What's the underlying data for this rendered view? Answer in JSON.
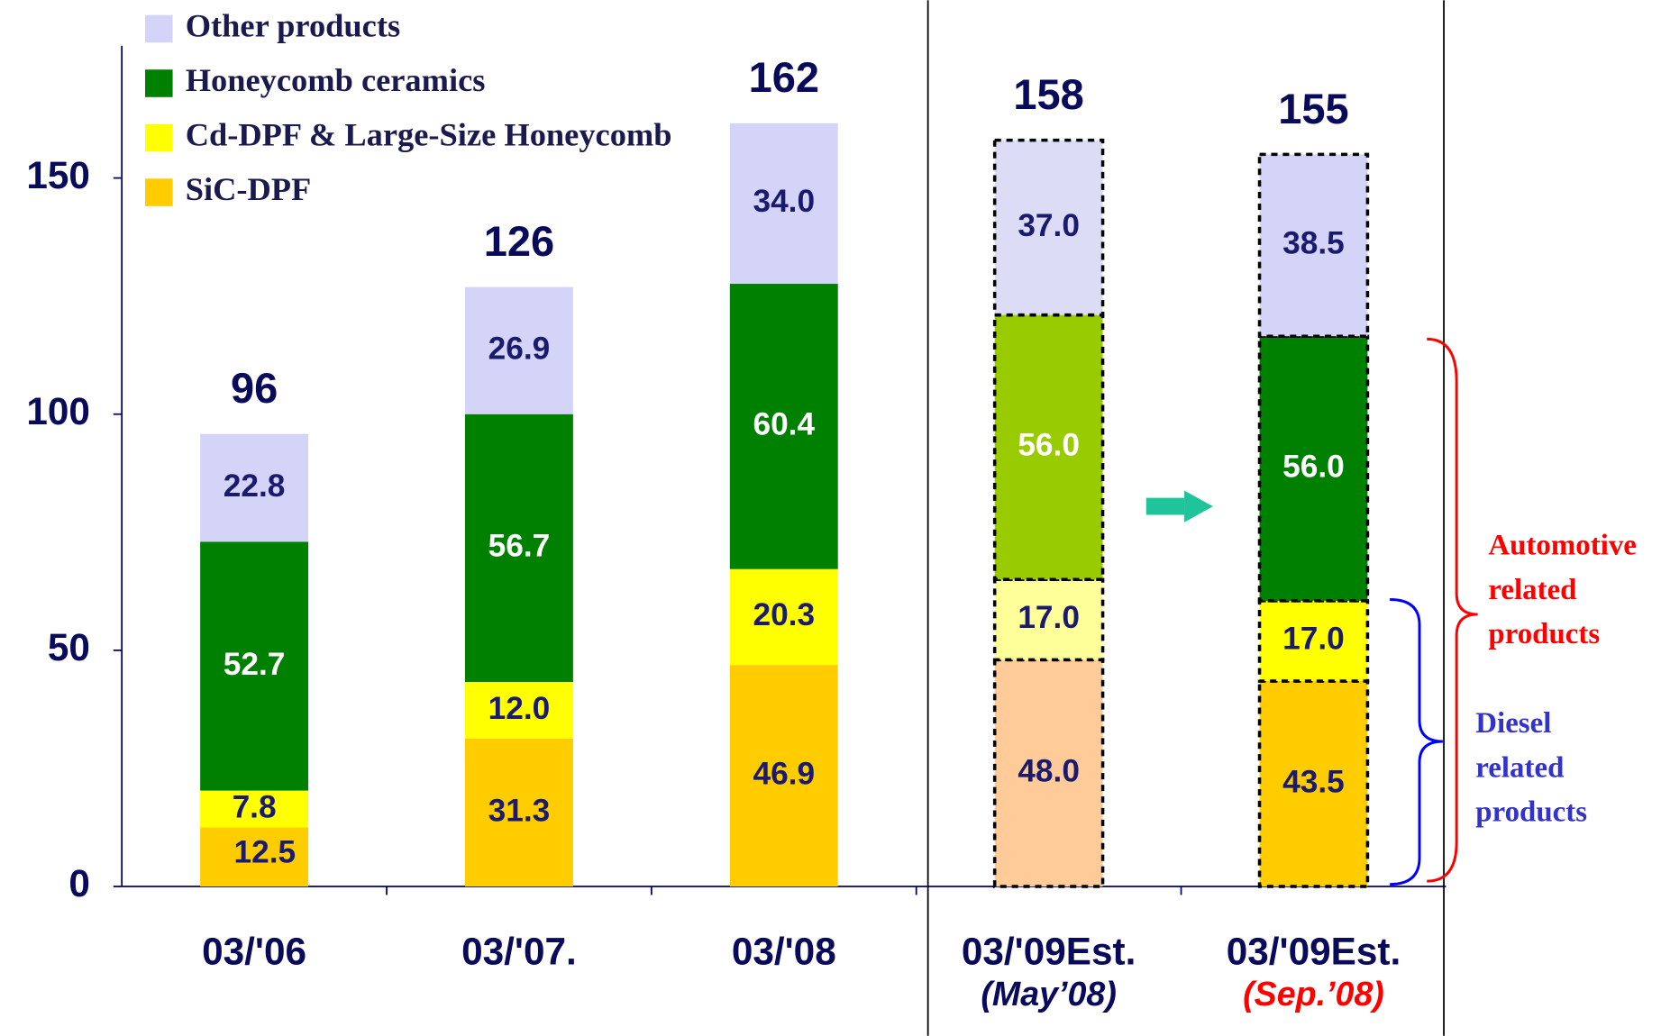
{
  "chart_data": {
    "type": "stacked_bar",
    "categories": [
      "03/'06",
      "03/'07.",
      "03/'08",
      "03/'09Est.",
      "03/'09Est."
    ],
    "category_sublabels": [
      null,
      null,
      null,
      "(May’08)",
      "(Sep.’08)"
    ],
    "category_sublabel_colors": [
      null,
      null,
      null,
      "#0a0a5a",
      "#ff0000"
    ],
    "estimate": [
      false,
      false,
      false,
      true,
      true
    ],
    "ylim": [
      0,
      178
    ],
    "yticks": [
      0,
      50,
      100,
      150
    ],
    "totals": [
      96,
      126,
      162,
      158,
      155
    ],
    "series": [
      {
        "name": "SiC-DPF",
        "color": "#ffcc00",
        "colors": [
          "#ffcc00",
          "#ffcc00",
          "#ffcc00",
          "#ffcc99",
          "#ffcc00"
        ],
        "label_color": "#1a1a6e",
        "values": [
          12.5,
          31.3,
          46.9,
          48.0,
          43.5
        ],
        "value_labels": [
          "12.5",
          "31.3",
          "46.9",
          "48.0",
          "43.5"
        ]
      },
      {
        "name": "Cd-DPF & Large-Size Honeycomb",
        "color": "#ffff00",
        "colors": [
          "#ffff00",
          "#ffff00",
          "#ffff00",
          "#ffff99",
          "#ffff00"
        ],
        "label_color": "#1a1a6e",
        "values": [
          7.8,
          12.0,
          20.3,
          17.0,
          17.0
        ],
        "value_labels": [
          "7.8",
          "12.0",
          "20.3",
          "17.0",
          "17.0"
        ]
      },
      {
        "name": "Honeycomb ceramics",
        "color": "#008000",
        "colors": [
          "#008000",
          "#008000",
          "#008000",
          "#99cc00",
          "#008000"
        ],
        "label_color": "#ffffff",
        "values": [
          52.7,
          56.7,
          60.4,
          56.0,
          56.0
        ],
        "value_labels": [
          "52.7",
          "56.7",
          "60.4",
          "56.0",
          "56.0"
        ]
      },
      {
        "name": "Other products",
        "color": "#d4d4f8",
        "colors": [
          "#d4d4f8",
          "#d4d4f8",
          "#d4d4f8",
          "#dcdcf6",
          "#d4d4f8"
        ],
        "label_color": "#1a1a6e",
        "values": [
          22.8,
          26.9,
          34.0,
          37.0,
          38.5
        ],
        "value_labels": [
          "22.8",
          "26.9",
          "34.0",
          "37.0",
          "38.5"
        ]
      }
    ],
    "annotations": [
      {
        "lines": [
          "Automotive",
          "related",
          "products"
        ],
        "color": "#ff0000"
      },
      {
        "lines": [
          "Diesel",
          "related",
          "products"
        ],
        "color": "#3333cc"
      }
    ]
  }
}
